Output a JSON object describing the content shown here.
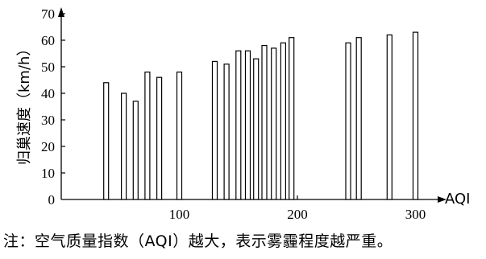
{
  "chart_data": {
    "type": "bar",
    "title": "",
    "xlabel": "AQI",
    "ylabel": "归巢速度（km/h）",
    "xlim": [
      0,
      350
    ],
    "ylim": [
      0,
      70
    ],
    "x_ticks": [
      100,
      200,
      300
    ],
    "y_ticks": [
      0,
      10,
      20,
      30,
      40,
      50,
      60,
      70
    ],
    "grid": false,
    "bars": [
      {
        "x": 38,
        "y": 44
      },
      {
        "x": 53,
        "y": 40
      },
      {
        "x": 63,
        "y": 37
      },
      {
        "x": 73,
        "y": 48
      },
      {
        "x": 83,
        "y": 46
      },
      {
        "x": 100,
        "y": 48
      },
      {
        "x": 130,
        "y": 52
      },
      {
        "x": 140,
        "y": 51
      },
      {
        "x": 150,
        "y": 56
      },
      {
        "x": 158,
        "y": 56
      },
      {
        "x": 165,
        "y": 53
      },
      {
        "x": 172,
        "y": 58
      },
      {
        "x": 180,
        "y": 57
      },
      {
        "x": 188,
        "y": 59
      },
      {
        "x": 195,
        "y": 61
      },
      {
        "x": 243,
        "y": 59
      },
      {
        "x": 252,
        "y": 61
      },
      {
        "x": 278,
        "y": 62
      },
      {
        "x": 300,
        "y": 63
      }
    ]
  },
  "note": "注：空气质量指数（AQI）越大，表示雾霾程度越严重。"
}
